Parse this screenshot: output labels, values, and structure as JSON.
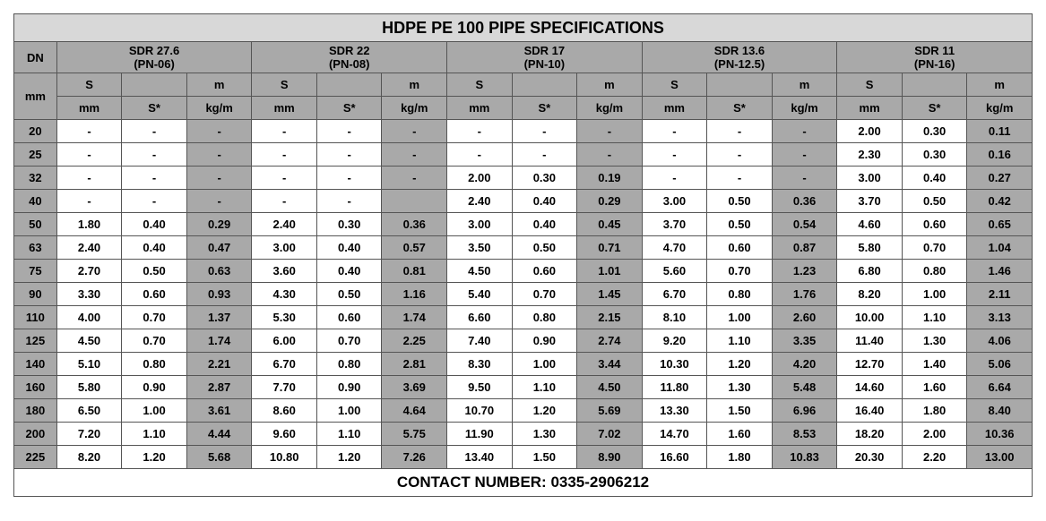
{
  "title": "HDPE PE 100 PIPE SPECIFICATIONS",
  "footer": "CONTACT NUMBER: 0335-2906212",
  "dn_header_top": "DN",
  "dn_header_bot": "mm",
  "groups": [
    {
      "sdr": "SDR 27.6",
      "pn": "(PN-06)"
    },
    {
      "sdr": "SDR 22",
      "pn": "(PN-08)"
    },
    {
      "sdr": "SDR 17",
      "pn": "(PN-10)"
    },
    {
      "sdr": "SDR 13.6",
      "pn": "(PN-12.5)"
    },
    {
      "sdr": "SDR 11",
      "pn": "(PN-16)"
    }
  ],
  "sub_headers": {
    "s_top": "S",
    "s_bot": "mm",
    "sstar_top": "",
    "sstar_bot": "S*",
    "m_top": "m",
    "m_bot": "kg/m"
  },
  "dn": [
    "20",
    "25",
    "32",
    "40",
    "50",
    "63",
    "75",
    "90",
    "110",
    "125",
    "140",
    "160",
    "180",
    "200",
    "225"
  ],
  "data": [
    [
      "-",
      "-",
      "-",
      "-",
      "-",
      "-",
      "-",
      "-",
      "-",
      "-",
      "-",
      "-",
      "2.00",
      "0.30",
      "0.11"
    ],
    [
      "-",
      "-",
      "-",
      "-",
      "-",
      "-",
      "-",
      "-",
      "-",
      "-",
      "-",
      "-",
      "2.30",
      "0.30",
      "0.16"
    ],
    [
      "-",
      "-",
      "-",
      "-",
      "-",
      "-",
      "2.00",
      "0.30",
      "0.19",
      "-",
      "-",
      "-",
      "3.00",
      "0.40",
      "0.27"
    ],
    [
      "-",
      "-",
      "-",
      "-",
      "-",
      "",
      "2.40",
      "0.40",
      "0.29",
      "3.00",
      "0.50",
      "0.36",
      "3.70",
      "0.50",
      "0.42"
    ],
    [
      "1.80",
      "0.40",
      "0.29",
      "2.40",
      "0.30",
      "0.36",
      "3.00",
      "0.40",
      "0.45",
      "3.70",
      "0.50",
      "0.54",
      "4.60",
      "0.60",
      "0.65"
    ],
    [
      "2.40",
      "0.40",
      "0.47",
      "3.00",
      "0.40",
      "0.57",
      "3.50",
      "0.50",
      "0.71",
      "4.70",
      "0.60",
      "0.87",
      "5.80",
      "0.70",
      "1.04"
    ],
    [
      "2.70",
      "0.50",
      "0.63",
      "3.60",
      "0.40",
      "0.81",
      "4.50",
      "0.60",
      "1.01",
      "5.60",
      "0.70",
      "1.23",
      "6.80",
      "0.80",
      "1.46"
    ],
    [
      "3.30",
      "0.60",
      "0.93",
      "4.30",
      "0.50",
      "1.16",
      "5.40",
      "0.70",
      "1.45",
      "6.70",
      "0.80",
      "1.76",
      "8.20",
      "1.00",
      "2.11"
    ],
    [
      "4.00",
      "0.70",
      "1.37",
      "5.30",
      "0.60",
      "1.74",
      "6.60",
      "0.80",
      "2.15",
      "8.10",
      "1.00",
      "2.60",
      "10.00",
      "1.10",
      "3.13"
    ],
    [
      "4.50",
      "0.70",
      "1.74",
      "6.00",
      "0.70",
      "2.25",
      "7.40",
      "0.90",
      "2.74",
      "9.20",
      "1.10",
      "3.35",
      "11.40",
      "1.30",
      "4.06"
    ],
    [
      "5.10",
      "0.80",
      "2.21",
      "6.70",
      "0.80",
      "2.81",
      "8.30",
      "1.00",
      "3.44",
      "10.30",
      "1.20",
      "4.20",
      "12.70",
      "1.40",
      "5.06"
    ],
    [
      "5.80",
      "0.90",
      "2.87",
      "7.70",
      "0.90",
      "3.69",
      "9.50",
      "1.10",
      "4.50",
      "11.80",
      "1.30",
      "5.48",
      "14.60",
      "1.60",
      "6.64"
    ],
    [
      "6.50",
      "1.00",
      "3.61",
      "8.60",
      "1.00",
      "4.64",
      "10.70",
      "1.20",
      "5.69",
      "13.30",
      "1.50",
      "6.96",
      "16.40",
      "1.80",
      "8.40"
    ],
    [
      "7.20",
      "1.10",
      "4.44",
      "9.60",
      "1.10",
      "5.75",
      "11.90",
      "1.30",
      "7.02",
      "14.70",
      "1.60",
      "8.53",
      "18.20",
      "2.00",
      "10.36"
    ],
    [
      "8.20",
      "1.20",
      "5.68",
      "10.80",
      "1.20",
      "7.26",
      "13.40",
      "1.50",
      "8.90",
      "16.60",
      "1.80",
      "10.83",
      "20.30",
      "2.20",
      "13.00"
    ]
  ],
  "colors": {
    "title_bg": "#d8d8d8",
    "header_bg": "#a9a9a9",
    "white": "#ffffff",
    "border": "#555555"
  }
}
